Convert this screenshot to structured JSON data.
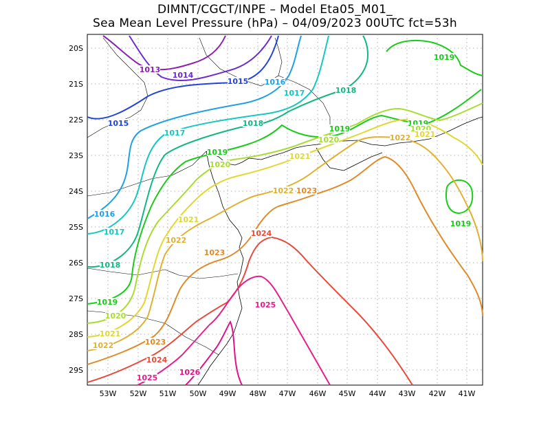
{
  "header": {
    "line1": "DIMNT/CGCT/INPE –  Model Eta05_M01_",
    "line2": "Sea Mean Level Pressure (hPa) – 04/09/2023 00UTC fct=53h"
  },
  "axes": {
    "lat_labels": [
      "20S",
      "21S",
      "22S",
      "23S",
      "24S",
      "25S",
      "26S",
      "27S",
      "28S",
      "29S"
    ],
    "lon_labels": [
      "53W",
      "52W",
      "51W",
      "50W",
      "49W",
      "48W",
      "47W",
      "46W",
      "45W",
      "44W",
      "43W",
      "42W",
      "41W"
    ]
  },
  "colors": {
    "1013": "#8a1fb0",
    "1014": "#6a2bd0",
    "1015": "#2244d8",
    "1016": "#1ea0e6",
    "1017": "#12c8c0",
    "1018": "#10b880",
    "1019": "#18cc18",
    "1020": "#a8dc30",
    "1021": "#e0d830",
    "1022": "#e0b030",
    "1023": "#e08a28",
    "1024": "#e84a3c",
    "1025": "#e81e8a",
    "1026": "#e0108a"
  },
  "isobars": [
    {
      "value": "1013",
      "label": "1013"
    },
    {
      "value": "1014",
      "label": "1014"
    },
    {
      "value": "1015",
      "label": "1015"
    },
    {
      "value": "1016",
      "label": "1016"
    },
    {
      "value": "1017",
      "label": "1017"
    },
    {
      "value": "1018",
      "label": "1018"
    },
    {
      "value": "1019",
      "label": "1019"
    },
    {
      "value": "1020",
      "label": "1020"
    },
    {
      "value": "1021",
      "label": "1021"
    },
    {
      "value": "1022",
      "label": "1022"
    },
    {
      "value": "1023",
      "label": "1023"
    },
    {
      "value": "1024",
      "label": "1024"
    },
    {
      "value": "1025",
      "label": "1025"
    },
    {
      "value": "1026",
      "label": "1026"
    }
  ]
}
